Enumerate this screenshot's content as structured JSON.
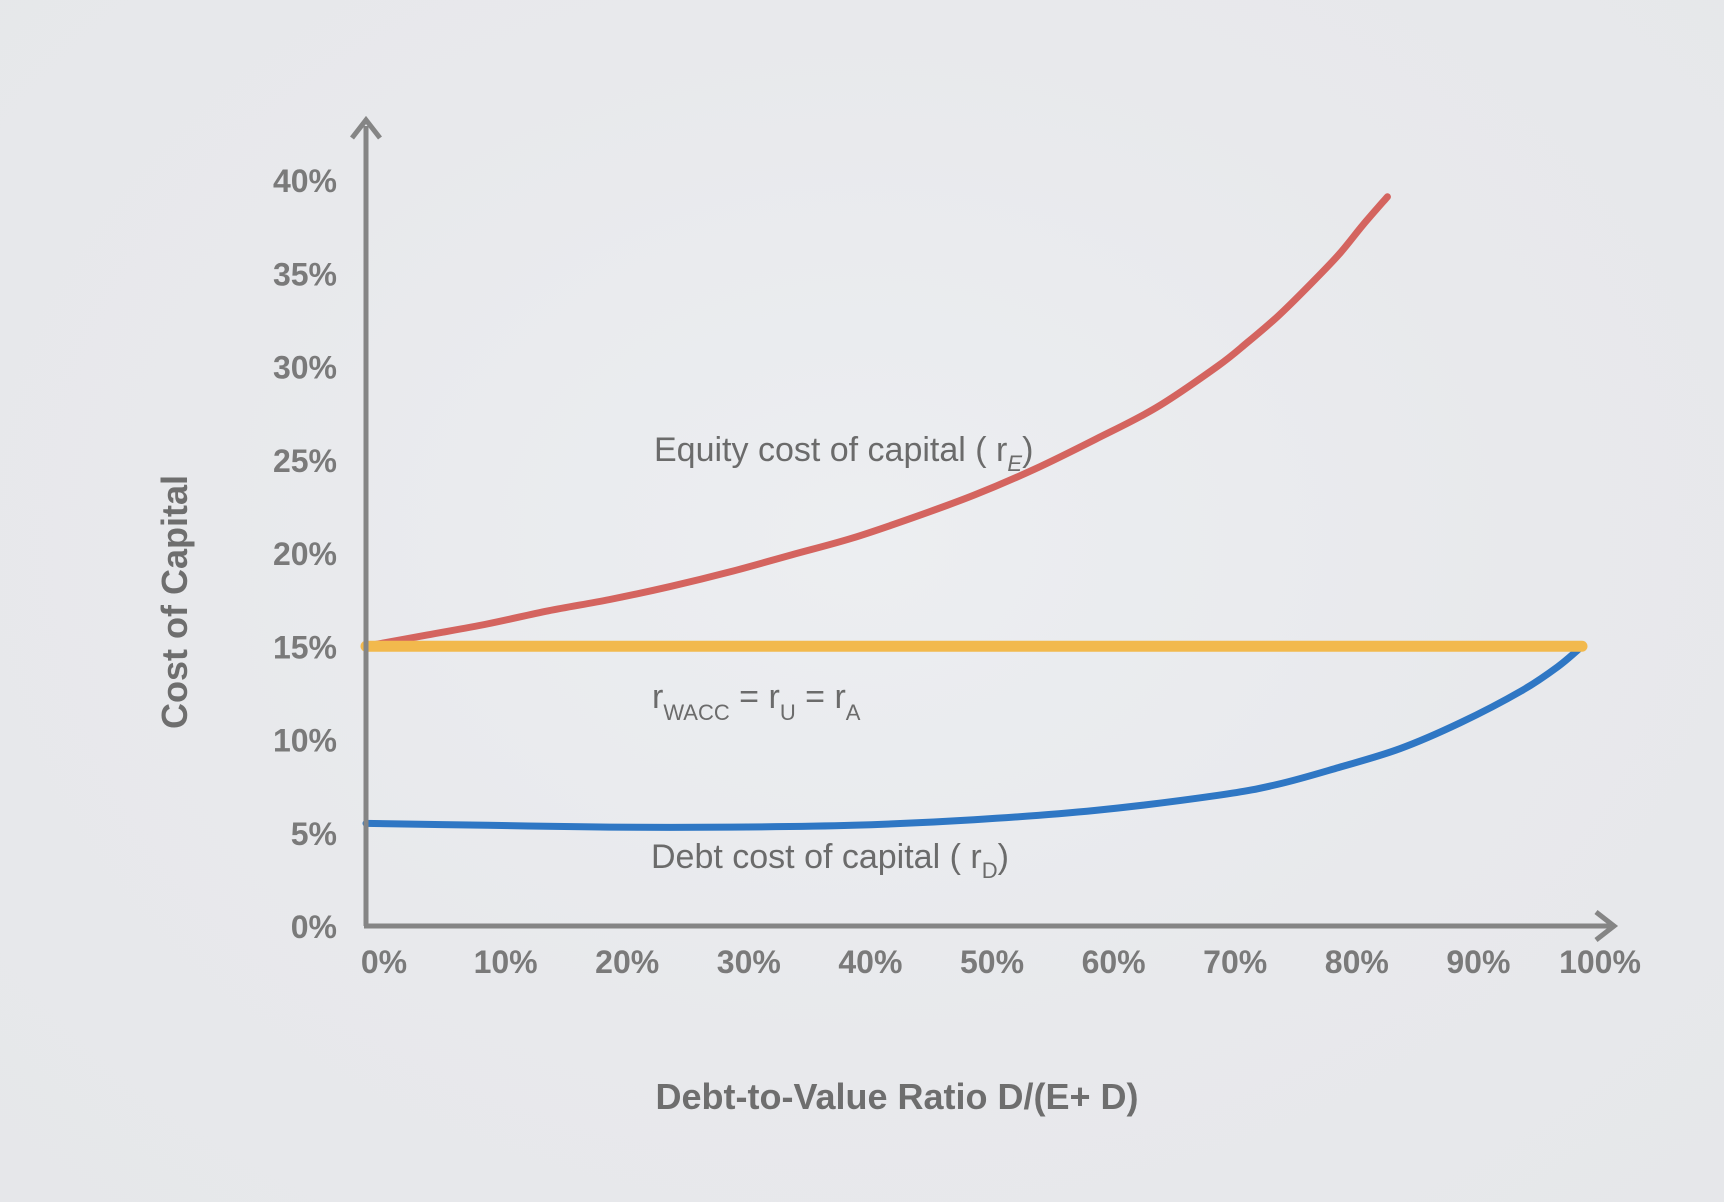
{
  "chart_data": {
    "type": "line",
    "xlabel": "Debt-to-Value Ratio D/(E+ D)",
    "ylabel": "Cost of Capital",
    "xlim": [
      0,
      100
    ],
    "ylim": [
      0,
      40
    ],
    "x_ticks": [
      "0%",
      "10%",
      "20%",
      "30%",
      "40%",
      "50%",
      "60%",
      "70%",
      "80%",
      "90%",
      "100%"
    ],
    "y_ticks": [
      "0%",
      "5%",
      "10%",
      "15%",
      "20%",
      "25%",
      "30%",
      "35%",
      "40%"
    ],
    "grid": false,
    "series": [
      {
        "name": "Equity cost of capital ( rE)",
        "color": "#d4645f",
        "x": [
          0,
          5,
          10,
          15,
          20,
          25,
          30,
          35,
          40,
          45,
          50,
          55,
          60,
          65,
          70,
          72.5,
          75,
          77.5,
          80,
          82,
          84
        ],
        "y": [
          15,
          15.6,
          16.2,
          16.9,
          17.5,
          18.2,
          19.0,
          19.9,
          20.8,
          21.9,
          23.1,
          24.5,
          26.1,
          27.8,
          30.0,
          31.3,
          32.7,
          34.3,
          36.0,
          37.6,
          39.1
        ]
      },
      {
        "name": "rWACC = rU = rA",
        "color": "#f2b94d",
        "x": [
          0,
          100
        ],
        "y": [
          15,
          15
        ]
      },
      {
        "name": "Debt cost of capital ( rD)",
        "color": "#2f77c4",
        "x": [
          0,
          10,
          20,
          30,
          40,
          50,
          60,
          70,
          75,
          80,
          85,
          90,
          95,
          98,
          100
        ],
        "y": [
          5.5,
          5.4,
          5.3,
          5.3,
          5.4,
          5.7,
          6.2,
          7.0,
          7.6,
          8.5,
          9.5,
          10.9,
          12.6,
          13.9,
          15
        ]
      }
    ],
    "annotations": {
      "equity": {
        "text": "Equity cost of capital ( r",
        "sub": "E",
        "close": ")"
      },
      "wacc": {
        "r1": "r",
        "sub1": "WACC",
        "eq1": " = r",
        "sub2": "U",
        "eq2": " = r",
        "sub3": "A"
      },
      "debt": {
        "text": "Debt cost of capital ( r",
        "sub": "D",
        "close": ")"
      }
    }
  }
}
